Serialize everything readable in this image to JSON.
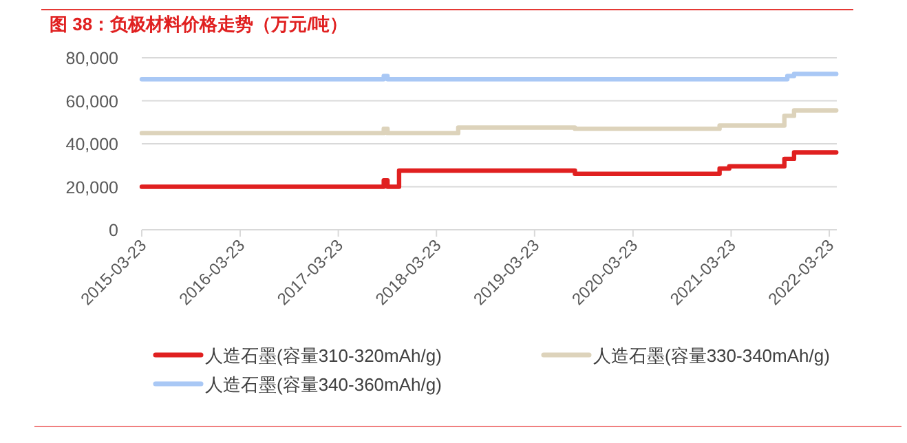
{
  "chart_data": {
    "type": "step",
    "title": "图 38：负极材料价格走势（万元/吨）",
    "xlim": [
      "2015-03-23",
      "2022-04-20"
    ],
    "xticks": [
      {
        "value": "2015-03-23",
        "label": "2015-03-23"
      },
      {
        "value": "2016-03-23",
        "label": "2016-03-23"
      },
      {
        "value": "2017-03-23",
        "label": "2017-03-23"
      },
      {
        "value": "2018-03-23",
        "label": "2018-03-23"
      },
      {
        "value": "2019-03-23",
        "label": "2019-03-23"
      },
      {
        "value": "2020-03-23",
        "label": "2020-03-23"
      },
      {
        "value": "2021-03-23",
        "label": "2021-03-23"
      },
      {
        "value": "2022-03-23",
        "label": "2022-03-23"
      }
    ],
    "ylim": [
      0,
      80000
    ],
    "yticks": [
      {
        "value": 0,
        "label": "0"
      },
      {
        "value": 20000,
        "label": "20,000"
      },
      {
        "value": 40000,
        "label": "40,000"
      },
      {
        "value": 60000,
        "label": "60,000"
      },
      {
        "value": 80000,
        "label": "80,000"
      }
    ],
    "grid": "y",
    "legend": "bottom",
    "marker": "none",
    "line_style": "solid",
    "series": [
      {
        "name": "人造石墨(容量310-320mAh/g)",
        "color": "#e02020",
        "x": [
          "2015-03-23",
          "2017-09-08",
          "2017-09-22",
          "2017-11-04",
          "2019-08-20",
          "2021-02-08",
          "2021-03-16",
          "2021-10-07",
          "2021-11-12",
          "2022-04-18"
        ],
        "values": [
          20000,
          23000,
          20000,
          27500,
          26000,
          28500,
          29500,
          33000,
          36000,
          36000
        ]
      },
      {
        "name": "人造石墨(容量330-340mAh/g)",
        "color": "#ddd3bb",
        "x": [
          "2015-03-23",
          "2017-09-08",
          "2017-09-22",
          "2018-06-12",
          "2019-08-20",
          "2021-02-08",
          "2021-10-07",
          "2021-11-12",
          "2022-04-18"
        ],
        "values": [
          45000,
          47000,
          45000,
          47500,
          47000,
          48500,
          53000,
          55500,
          55500
        ]
      },
      {
        "name": "人造石墨(容量340-360mAh/g)",
        "color": "#a9c8f5",
        "x": [
          "2015-03-23",
          "2017-09-08",
          "2017-09-22",
          "2021-10-18",
          "2021-11-12",
          "2022-04-18"
        ],
        "values": [
          70000,
          71500,
          70000,
          71500,
          72500,
          72500
        ]
      }
    ]
  }
}
